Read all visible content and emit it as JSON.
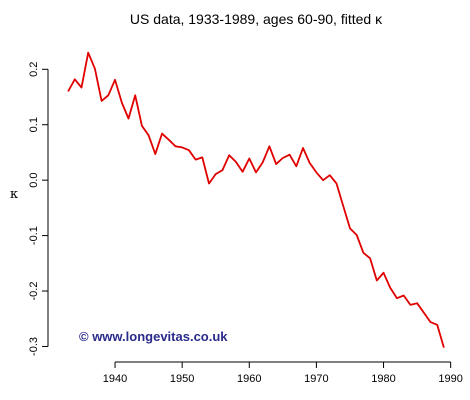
{
  "chart_data": {
    "type": "line",
    "title": "US data, 1933-1989, ages 60-90, fitted κ",
    "xlabel": "",
    "ylabel": "κ",
    "xlim": [
      1931.8,
      1990.2
    ],
    "ylim": [
      -0.31,
      0.242
    ],
    "x_ticks": [
      1940,
      1950,
      1960,
      1970,
      1980,
      1990
    ],
    "y_ticks": [
      -0.3,
      -0.2,
      -0.1,
      0.0,
      0.1,
      0.2
    ],
    "x_tick_labels": [
      "1940",
      "1950",
      "1960",
      "1970",
      "1980",
      "1990"
    ],
    "y_tick_labels": [
      "-0.3",
      "-0.2",
      "-0.1",
      "0.0",
      "0.1",
      "0.2"
    ],
    "grid": false,
    "series": [
      {
        "color": "#e00000",
        "x": [
          1933,
          1934,
          1935,
          1936,
          1937,
          1938,
          1939,
          1940,
          1941,
          1942,
          1943,
          1944,
          1945,
          1946,
          1947,
          1948,
          1949,
          1950,
          1951,
          1952,
          1953,
          1954,
          1955,
          1956,
          1957,
          1958,
          1959,
          1960,
          1961,
          1962,
          1963,
          1964,
          1965,
          1966,
          1967,
          1968,
          1969,
          1970,
          1971,
          1972,
          1973,
          1974,
          1975,
          1976,
          1977,
          1978,
          1979,
          1980,
          1981,
          1982,
          1983,
          1984,
          1985,
          1986,
          1987,
          1988,
          1989
        ],
        "y": [
          0.16,
          0.182,
          0.167,
          0.23,
          0.201,
          0.143,
          0.153,
          0.181,
          0.14,
          0.111,
          0.153,
          0.098,
          0.081,
          0.047,
          0.084,
          0.073,
          0.061,
          0.059,
          0.054,
          0.037,
          0.041,
          -0.006,
          0.011,
          0.018,
          0.045,
          0.033,
          0.015,
          0.039,
          0.014,
          0.032,
          0.061,
          0.029,
          0.04,
          0.046,
          0.025,
          0.058,
          0.031,
          0.014,
          0.0,
          0.009,
          -0.006,
          -0.047,
          -0.087,
          -0.099,
          -0.131,
          -0.141,
          -0.181,
          -0.167,
          -0.194,
          -0.213,
          -0.208,
          -0.225,
          -0.222,
          -0.239,
          -0.256,
          -0.261,
          -0.302
        ]
      }
    ]
  },
  "watermark": {
    "text": "© www.longevitas.co.uk",
    "color": "#2a2a8a"
  }
}
